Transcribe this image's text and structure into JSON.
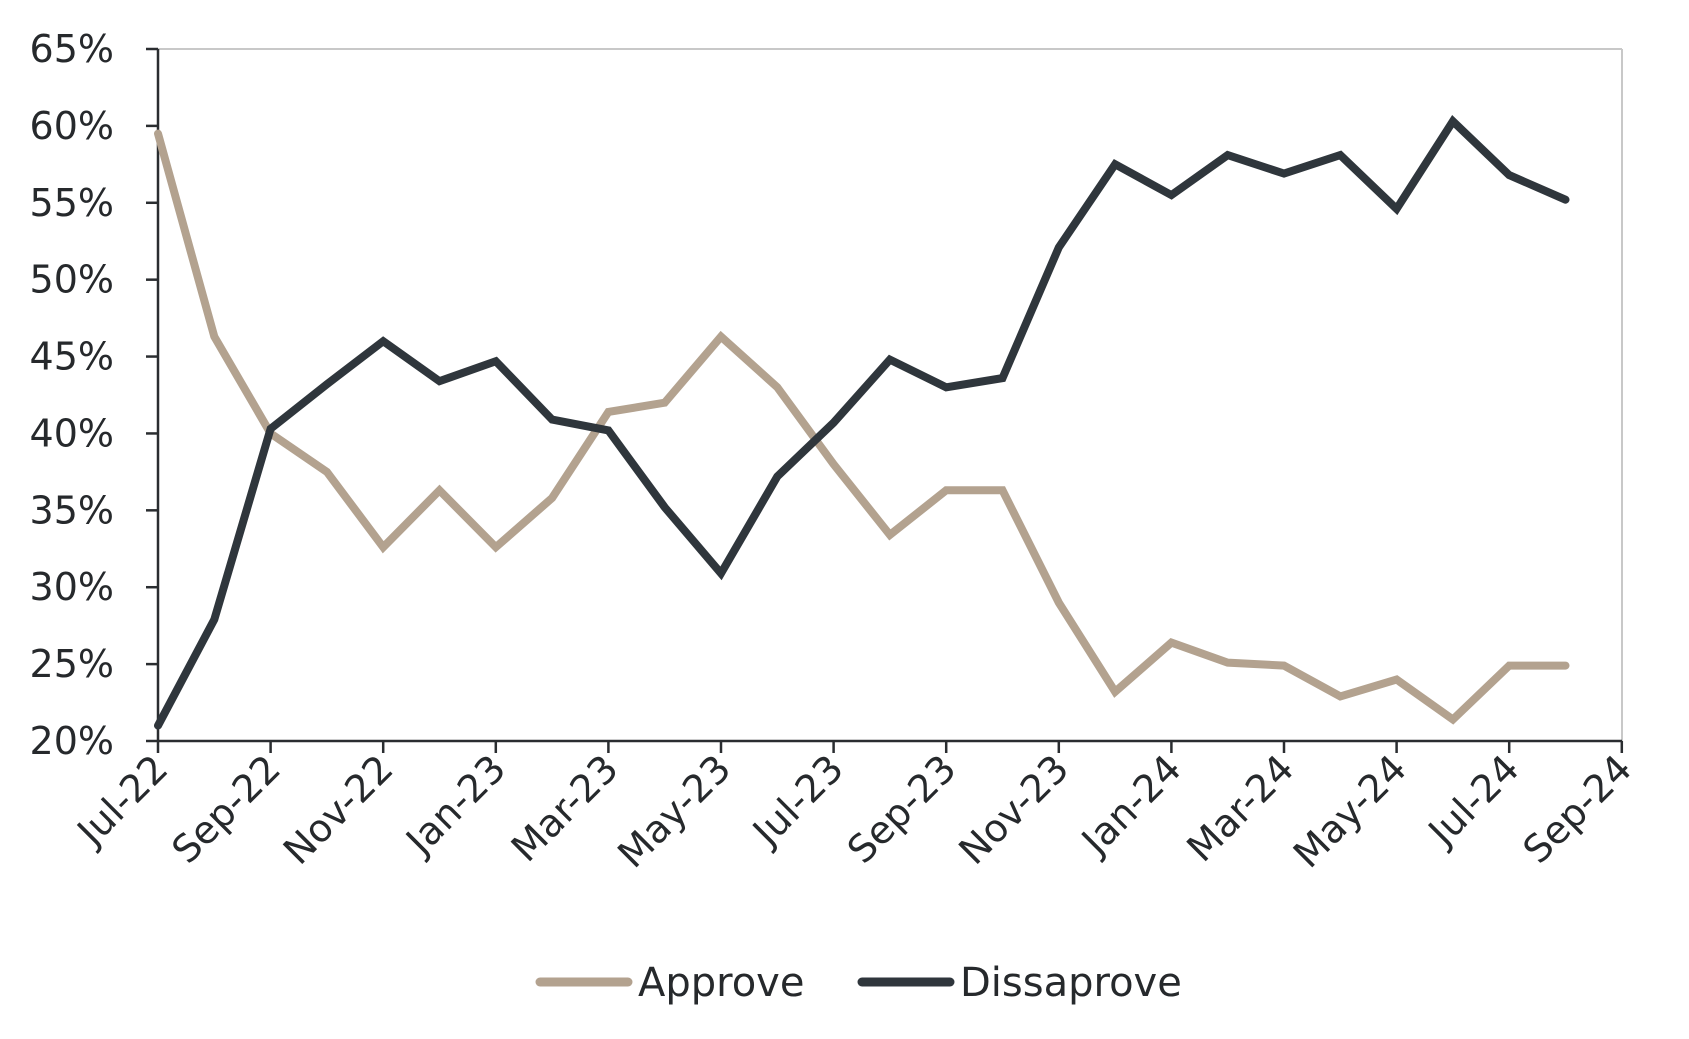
{
  "chart_data": {
    "type": "line",
    "title": "",
    "xlabel": "",
    "ylabel": "",
    "y_unit": "%",
    "ylim": [
      20,
      65
    ],
    "y_ticks": [
      20,
      25,
      30,
      35,
      40,
      45,
      50,
      55,
      60,
      65
    ],
    "y_tick_labels": [
      "20%",
      "25%",
      "30%",
      "35%",
      "40%",
      "45%",
      "50%",
      "55%",
      "60%",
      "65%"
    ],
    "x_tick_labels": [
      "Jul-22",
      "Sep-22",
      "Nov-22",
      "Jan-23",
      "Mar-23",
      "May-23",
      "Jul-23",
      "Sep-23",
      "Nov-23",
      "Jan-24",
      "Mar-24",
      "May-24",
      "Jul-24",
      "Sep-24"
    ],
    "x": [
      "Jul-22",
      "Aug-22",
      "Sep-22",
      "Oct-22",
      "Nov-22",
      "Dec-22",
      "Jan-23",
      "Feb-23",
      "Mar-23",
      "Apr-23",
      "May-23",
      "Jun-23",
      "Jul-23",
      "Aug-23",
      "Sep-23",
      "Oct-23",
      "Nov-23",
      "Dec-23",
      "Jan-24",
      "Feb-24",
      "Mar-24",
      "Apr-24",
      "May-24",
      "Jun-24",
      "Jul-24",
      "Aug-24"
    ],
    "series": [
      {
        "name": "Approve",
        "color": "#b3a28f",
        "values": [
          59.5,
          46.3,
          40.0,
          37.5,
          32.6,
          36.3,
          32.6,
          35.8,
          41.4,
          42.0,
          46.3,
          43.0,
          38.0,
          33.4,
          36.3,
          36.3,
          29.0,
          23.2,
          26.4,
          25.1,
          24.9,
          22.9,
          24.0,
          21.4,
          24.9,
          24.9
        ]
      },
      {
        "name": "Dissaprove",
        "color": "#2f363c",
        "values": [
          21.0,
          27.9,
          40.3,
          43.2,
          46.0,
          43.4,
          44.7,
          40.9,
          40.2,
          35.2,
          30.9,
          37.2,
          40.7,
          44.8,
          43.0,
          43.6,
          52.1,
          57.5,
          55.5,
          58.1,
          56.9,
          58.1,
          54.6,
          60.3,
          56.8,
          55.2
        ]
      }
    ],
    "legend": {
      "position": "bottom-center",
      "items": [
        "Approve",
        "Dissaprove"
      ]
    },
    "grid": false
  }
}
